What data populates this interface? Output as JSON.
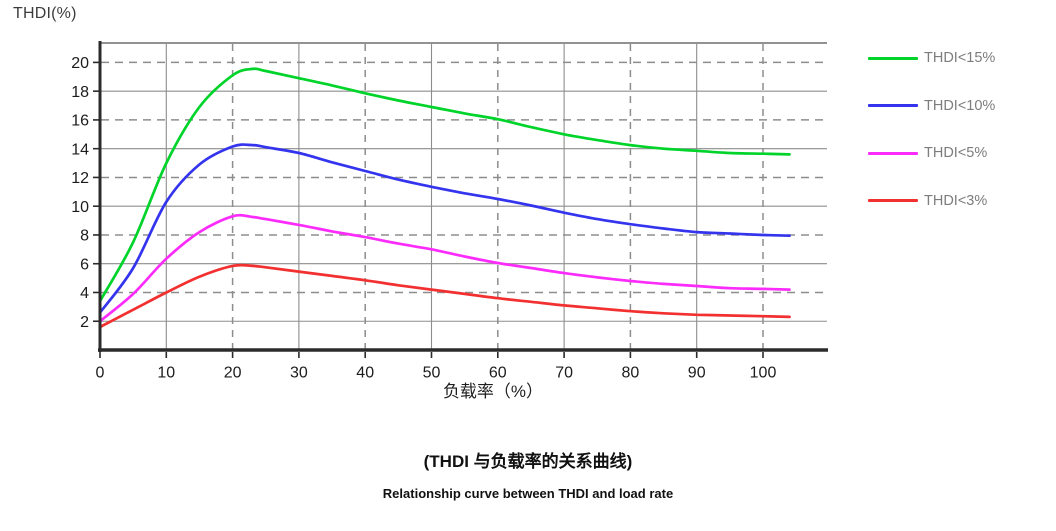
{
  "colors": {
    "axis": "#2b2b2b",
    "grid": "#8d8d8d",
    "top_border": "#6e6e6e",
    "tick_text": "#1c1c1c",
    "legend_text": "#7d7d7d"
  },
  "chart_data": {
    "type": "line",
    "title": "(THDI 与负载率的关系曲线)",
    "subtitle": "Relationship curve between THDI and load rate",
    "xlabel": "负载率（%）",
    "ylabel": "THDI(%)",
    "xlim": [
      0,
      110
    ],
    "ylim": [
      0,
      21.3
    ],
    "x_ticks": [
      0,
      10,
      20,
      30,
      40,
      50,
      60,
      70,
      80,
      90,
      100
    ],
    "y_ticks": [
      2,
      4,
      6,
      8,
      10,
      12,
      14,
      16,
      18,
      20
    ],
    "grid": {
      "solid_x": [
        10,
        30,
        50,
        70,
        90
      ],
      "dashed_x": [
        20,
        40,
        60,
        80,
        100
      ],
      "solid_y": [
        2,
        6,
        10,
        14,
        18
      ],
      "dashed_y": [
        4,
        8,
        12,
        16,
        20
      ]
    },
    "legend_position": "right",
    "x": [
      0,
      5,
      10,
      15,
      20,
      23,
      25,
      30,
      35,
      40,
      45,
      50,
      55,
      60,
      65,
      70,
      75,
      80,
      85,
      90,
      95,
      100,
      104
    ],
    "series": [
      {
        "name": "THDI<15%",
        "color": "#00d42a",
        "values": [
          3.4,
          7.5,
          13.0,
          16.9,
          19.1,
          19.55,
          19.4,
          18.9,
          18.4,
          17.85,
          17.35,
          16.9,
          16.45,
          16.05,
          15.5,
          15.0,
          14.6,
          14.25,
          14.0,
          13.85,
          13.7,
          13.65,
          13.6
        ]
      },
      {
        "name": "THDI<10%",
        "color": "#3434ee",
        "values": [
          2.6,
          5.7,
          10.3,
          12.9,
          14.15,
          14.25,
          14.1,
          13.7,
          13.05,
          12.45,
          11.85,
          11.35,
          10.9,
          10.5,
          10.05,
          9.55,
          9.1,
          8.75,
          8.45,
          8.2,
          8.1,
          8.0,
          7.95
        ]
      },
      {
        "name": "THDI<5%",
        "color": "#fb2cfb",
        "values": [
          2.0,
          3.9,
          6.35,
          8.2,
          9.3,
          9.25,
          9.1,
          8.7,
          8.25,
          7.85,
          7.4,
          7.0,
          6.5,
          6.05,
          5.7,
          5.35,
          5.05,
          4.8,
          4.6,
          4.45,
          4.3,
          4.25,
          4.2
        ]
      },
      {
        "name": "THDI<3%",
        "color": "#f23030",
        "values": [
          1.6,
          2.8,
          4.0,
          5.1,
          5.85,
          5.85,
          5.75,
          5.45,
          5.15,
          4.85,
          4.5,
          4.2,
          3.9,
          3.6,
          3.35,
          3.1,
          2.9,
          2.7,
          2.55,
          2.45,
          2.4,
          2.35,
          2.3
        ]
      }
    ]
  }
}
